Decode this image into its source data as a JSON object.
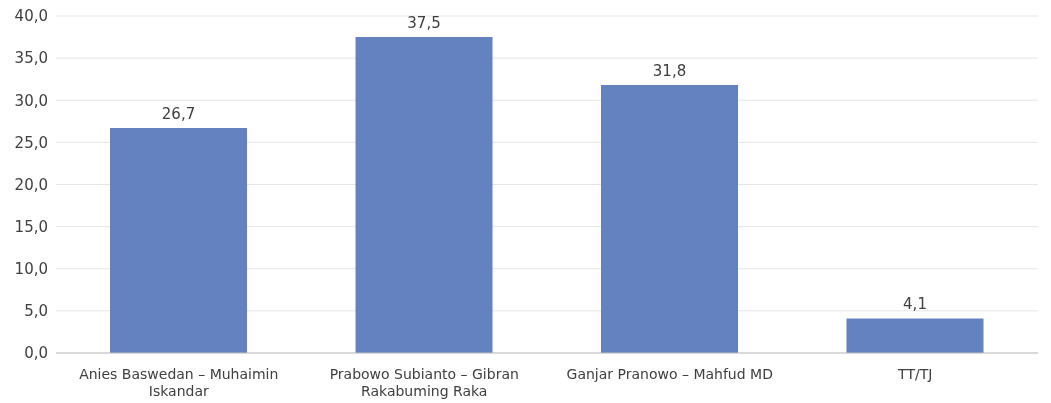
{
  "chart_data": {
    "type": "bar",
    "categories": [
      "Anies Baswedan – Muhaimin Iskandar",
      "Prabowo Subianto – Gibran Rakabuming Raka",
      "Ganjar Pranowo – Mahfud MD",
      "TT/TJ"
    ],
    "values": [
      26.7,
      37.5,
      31.8,
      4.1
    ],
    "value_labels": [
      "26,7",
      "37,5",
      "31,8",
      "4,1"
    ],
    "color": "#6482bf",
    "ylim": [
      0,
      40
    ],
    "yticks": [
      {
        "value": 0,
        "label": "0,0"
      },
      {
        "value": 5,
        "label": "5,0"
      },
      {
        "value": 10,
        "label": "10,0"
      },
      {
        "value": 15,
        "label": "15,0"
      },
      {
        "value": 20,
        "label": "20,0"
      },
      {
        "value": 25,
        "label": "25,0"
      },
      {
        "value": 30,
        "label": "30,0"
      },
      {
        "value": 35,
        "label": "35,0"
      },
      {
        "value": 40,
        "label": "40,0"
      }
    ],
    "grid": "y"
  }
}
